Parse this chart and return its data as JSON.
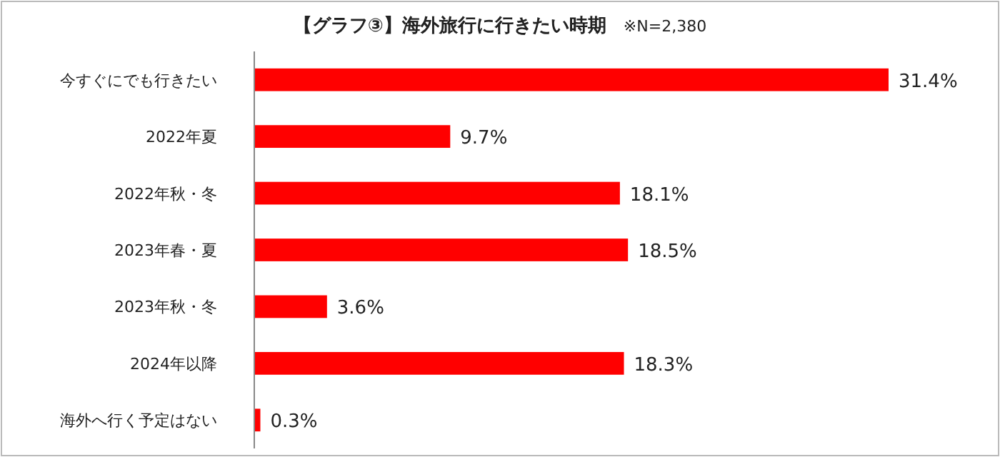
{
  "chart_data": {
    "type": "bar",
    "orientation": "horizontal",
    "title": "【グラフ③】海外旅行に行きたい時期",
    "subtitle": "※N=2,380",
    "categories": [
      "今すぐにでも行きたい",
      "2022年夏",
      "2022年秋・冬",
      "2023年春・夏",
      "2023年秋・冬",
      "2024年以降",
      "海外へ行く予定はない"
    ],
    "values": [
      31.4,
      9.7,
      18.1,
      18.5,
      3.6,
      18.3,
      0.3
    ],
    "value_labels": [
      "31.4%",
      "9.7%",
      "18.1%",
      "18.5%",
      "3.6%",
      "18.3%",
      "0.3%"
    ],
    "color": "#ff0000",
    "tick_labels": "y"
  }
}
